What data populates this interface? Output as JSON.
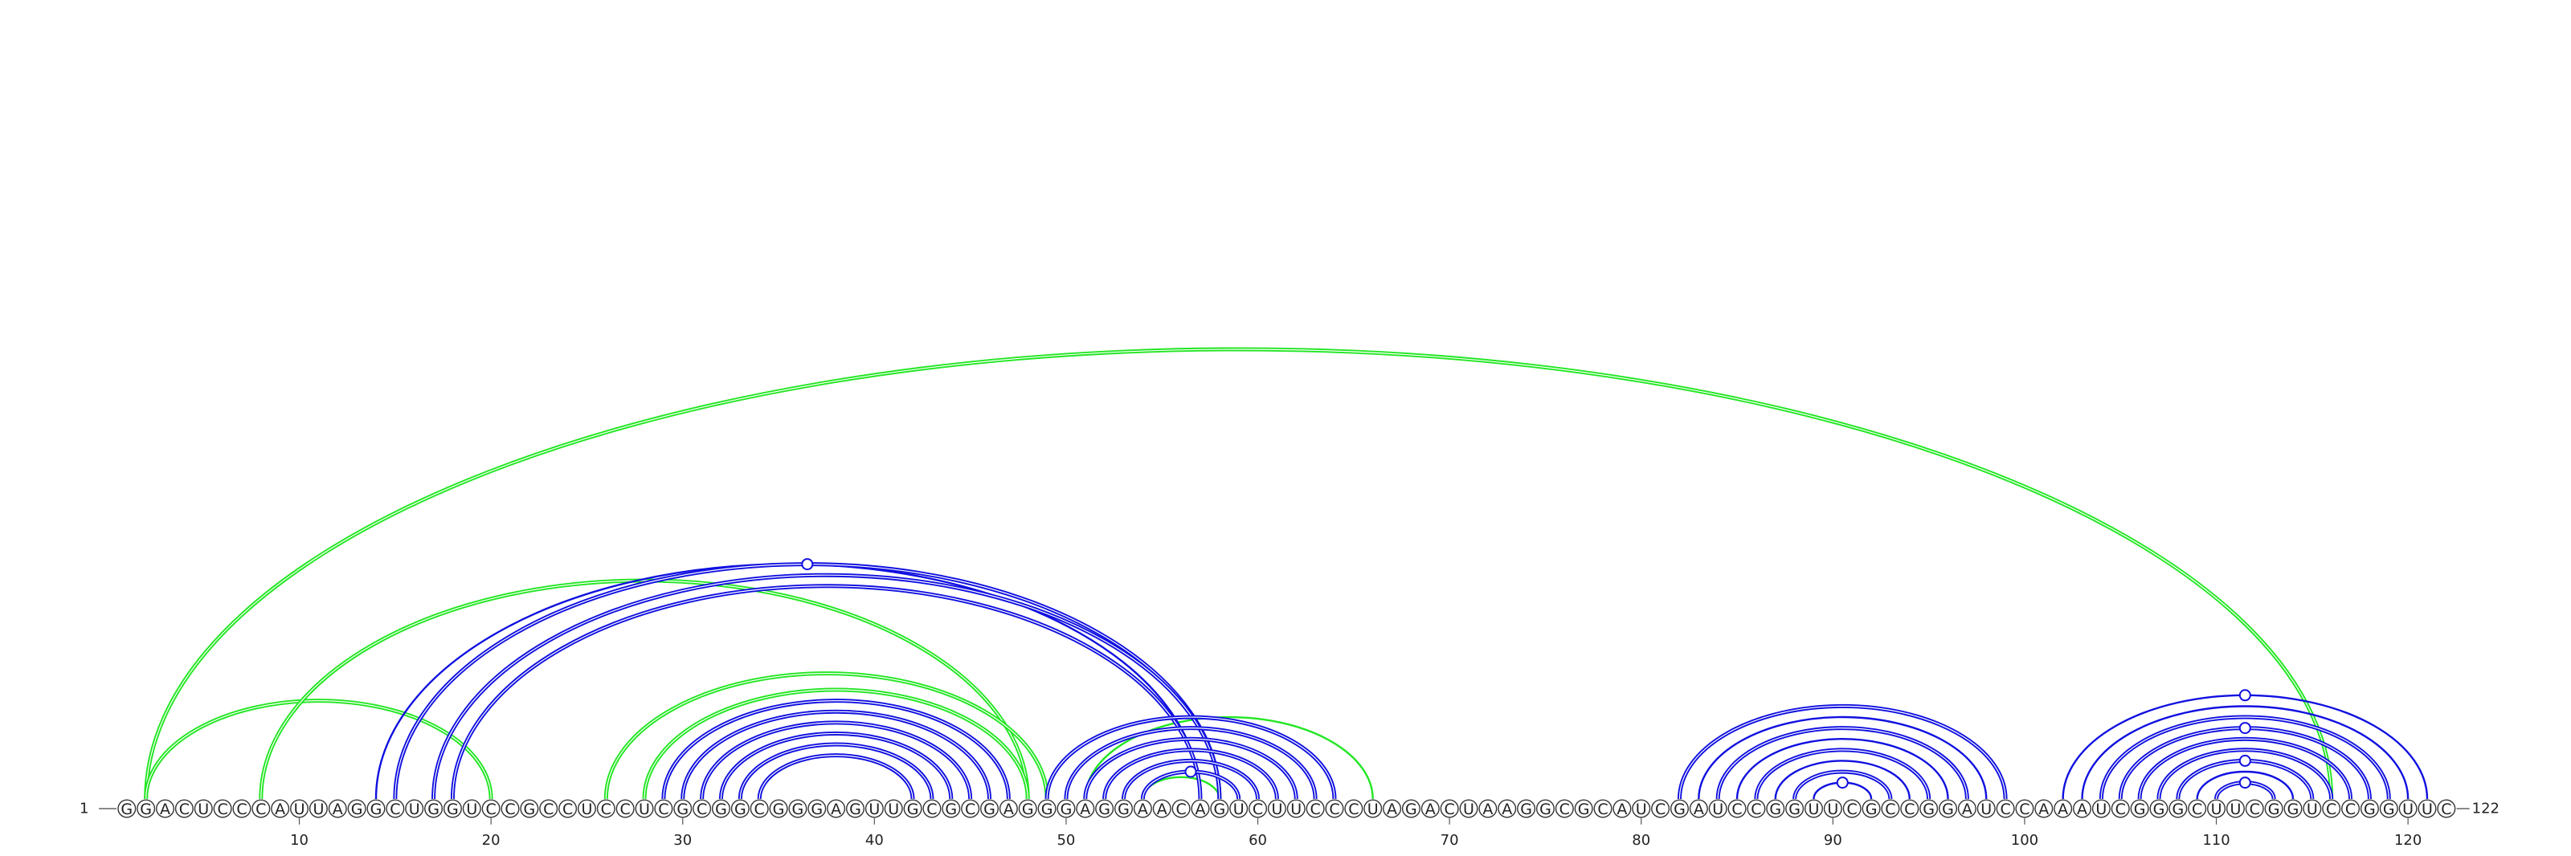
{
  "sequence": "GGACUCCCAUUAGGCUGGUCCGCCUCCUCGCGGCGGGAGUUGCGCGAGGGAGGAACAGUCUUCCCUAGACUAAGGCGCAUCGAUCCGGUUCGCCGGAUCCAAAUCGGGCUUCGGUCCGGUUC",
  "start_label": "1",
  "end_label": "122",
  "ticks": [
    "10",
    "20",
    "30",
    "40",
    "50",
    "60",
    "70",
    "80",
    "90",
    "100",
    "110",
    "120"
  ],
  "colors": {
    "blue_arc": "#1010e0",
    "green_arc": "#22e622",
    "blue_marker": "#1010e0"
  },
  "arcs": [
    {
      "i": 2,
      "j": 116,
      "color": "green",
      "double": true
    },
    {
      "i": 2,
      "j": 20,
      "color": "green",
      "double": true
    },
    {
      "i": 8,
      "j": 48,
      "color": "green",
      "double": true
    },
    {
      "i": 26,
      "j": 49,
      "color": "green",
      "double": true
    },
    {
      "i": 28,
      "j": 48,
      "color": "green",
      "double": true
    },
    {
      "i": 51,
      "j": 66,
      "color": "green",
      "double": false
    },
    {
      "i": 54,
      "j": 58,
      "color": "green",
      "double": false
    },
    {
      "i": 14,
      "j": 57,
      "color": "blue",
      "double": false
    },
    {
      "i": 15,
      "j": 58,
      "color": "blue",
      "double": true
    },
    {
      "i": 17,
      "j": 58,
      "color": "blue",
      "double": true
    },
    {
      "i": 18,
      "j": 57,
      "color": "blue",
      "double": true
    },
    {
      "i": 29,
      "j": 47,
      "color": "blue",
      "double": true
    },
    {
      "i": 30,
      "j": 46,
      "color": "blue",
      "double": true
    },
    {
      "i": 31,
      "j": 45,
      "color": "blue",
      "double": true
    },
    {
      "i": 32,
      "j": 44,
      "color": "blue",
      "double": true
    },
    {
      "i": 33,
      "j": 43,
      "color": "blue",
      "double": true
    },
    {
      "i": 34,
      "j": 42,
      "color": "blue",
      "double": true
    },
    {
      "i": 49,
      "j": 64,
      "color": "blue",
      "double": true
    },
    {
      "i": 50,
      "j": 63,
      "color": "blue",
      "double": true
    },
    {
      "i": 51,
      "j": 62,
      "color": "blue",
      "double": true
    },
    {
      "i": 52,
      "j": 61,
      "color": "blue",
      "double": true
    },
    {
      "i": 53,
      "j": 60,
      "color": "blue",
      "double": true
    },
    {
      "i": 54,
      "j": 59,
      "color": "blue",
      "double": true
    },
    {
      "i": 82,
      "j": 99,
      "color": "blue",
      "double": true
    },
    {
      "i": 83,
      "j": 98,
      "color": "blue",
      "double": false
    },
    {
      "i": 84,
      "j": 97,
      "color": "blue",
      "double": true
    },
    {
      "i": 85,
      "j": 96,
      "color": "blue",
      "double": false
    },
    {
      "i": 86,
      "j": 95,
      "color": "blue",
      "double": true
    },
    {
      "i": 87,
      "j": 94,
      "color": "blue",
      "double": false
    },
    {
      "i": 88,
      "j": 93,
      "color": "blue",
      "double": true
    },
    {
      "i": 89,
      "j": 92,
      "color": "blue",
      "double": false
    },
    {
      "i": 102,
      "j": 121,
      "color": "blue",
      "double": false
    },
    {
      "i": 103,
      "j": 120,
      "color": "blue",
      "double": false
    },
    {
      "i": 104,
      "j": 119,
      "color": "blue",
      "double": true
    },
    {
      "i": 105,
      "j": 118,
      "color": "blue",
      "double": true
    },
    {
      "i": 106,
      "j": 117,
      "color": "blue",
      "double": true
    },
    {
      "i": 107,
      "j": 116,
      "color": "blue",
      "double": true
    },
    {
      "i": 108,
      "j": 115,
      "color": "blue",
      "double": true
    },
    {
      "i": 109,
      "j": 114,
      "color": "blue",
      "double": false
    },
    {
      "i": 110,
      "j": 113,
      "color": "blue",
      "double": true
    }
  ],
  "markers": [
    {
      "i": 15,
      "j": 58
    },
    {
      "i": 54,
      "j": 59
    },
    {
      "i": 89,
      "j": 92
    },
    {
      "i": 102,
      "j": 121
    },
    {
      "i": 105,
      "j": 118
    },
    {
      "i": 108,
      "j": 115
    },
    {
      "i": 110,
      "j": 113
    }
  ]
}
